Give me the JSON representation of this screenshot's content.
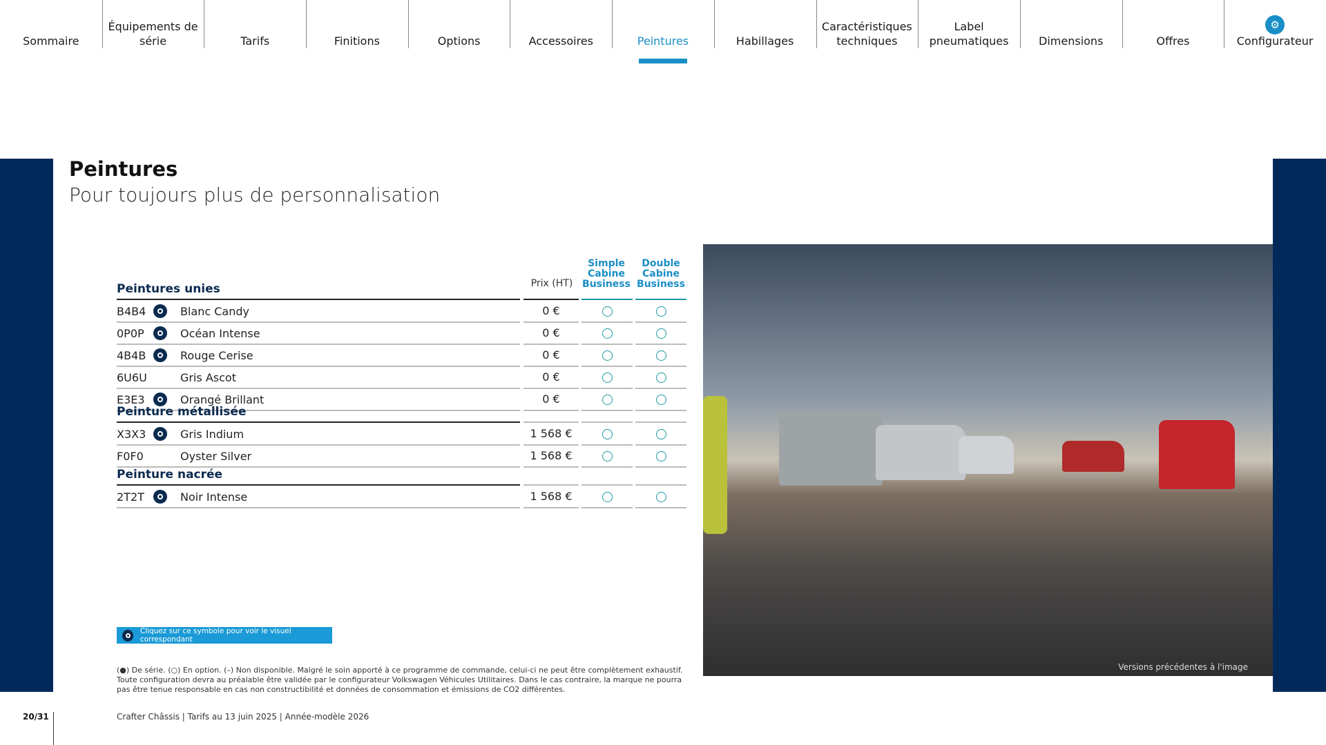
{
  "nav": [
    {
      "label": "Sommaire"
    },
    {
      "label": "Équipements de série"
    },
    {
      "label": "Tarifs"
    },
    {
      "label": "Finitions"
    },
    {
      "label": "Options"
    },
    {
      "label": "Accessoires"
    },
    {
      "label": "Peintures",
      "active": true
    },
    {
      "label": "Habillages"
    },
    {
      "label": "Caractéristiques techniques"
    },
    {
      "label": "Label pneumatiques"
    },
    {
      "label": "Dimensions"
    },
    {
      "label": "Offres"
    },
    {
      "label": "Configurateur",
      "icon": "configurator-icon"
    }
  ],
  "page": {
    "title": "Peintures",
    "subtitle": "Pour toujours plus de personnalisation"
  },
  "table": {
    "headers": {
      "price": "Prix (HT)",
      "simple": "Simple Cabine Business",
      "double": "Double Cabine Business"
    },
    "sections": [
      {
        "title": "Peintures unies",
        "rows": [
          {
            "code": "B4B4",
            "eye": true,
            "name": "Blanc Candy",
            "price": "0 €",
            "simple": "option",
            "double": "option"
          },
          {
            "code": "0P0P",
            "eye": true,
            "name": "Océan Intense",
            "price": "0 €",
            "simple": "option",
            "double": "option"
          },
          {
            "code": "4B4B",
            "eye": true,
            "name": "Rouge Cerise",
            "price": "0 €",
            "simple": "option",
            "double": "option"
          },
          {
            "code": "6U6U",
            "eye": false,
            "name": "Gris Ascot",
            "price": "0 €",
            "simple": "option",
            "double": "option"
          },
          {
            "code": "E3E3",
            "eye": true,
            "name": "Orangé Brillant",
            "price": "0 €",
            "simple": "option",
            "double": "option"
          }
        ]
      },
      {
        "title": "Peinture métallisée",
        "rows": [
          {
            "code": "X3X3",
            "eye": true,
            "name": "Gris Indium",
            "price": "1 568 €",
            "simple": "option",
            "double": "option"
          },
          {
            "code": "F0F0",
            "eye": false,
            "name": "Oyster Silver",
            "price": "1 568 €",
            "simple": "option",
            "double": "option"
          }
        ]
      },
      {
        "title": "Peinture nacrée",
        "rows": [
          {
            "code": "2T2T",
            "eye": true,
            "name": "Noir Intense",
            "price": "1 568 €",
            "simple": "option",
            "double": "option"
          }
        ]
      }
    ]
  },
  "photo_caption": "Versions précédentes à l'image",
  "info_bar": "Cliquez sur ce symbole pour voir le visuel correspondant",
  "footnote": "(●) De série.  (○) En option. (–) Non disponible. Malgré le soin apporté à ce programme de commande, celui-ci ne peut être complètement exhaustif. Toute configuration devra au préalable être validée par le configurateur Volkswagen Véhicules Utilitaires. Dans le cas contraire, la marque ne pourra pas être tenue responsable en cas non constructibilité et données de consommation et émissions de CO2 différentes.",
  "footer": "Crafter Châssis | Tarifs au 13 juin 2025 | Année-modèle 2026",
  "page_number": "20/31",
  "colors": {
    "navy": "#012a5b",
    "accent": "#1a8ec6",
    "option": "#1a9aa0"
  }
}
